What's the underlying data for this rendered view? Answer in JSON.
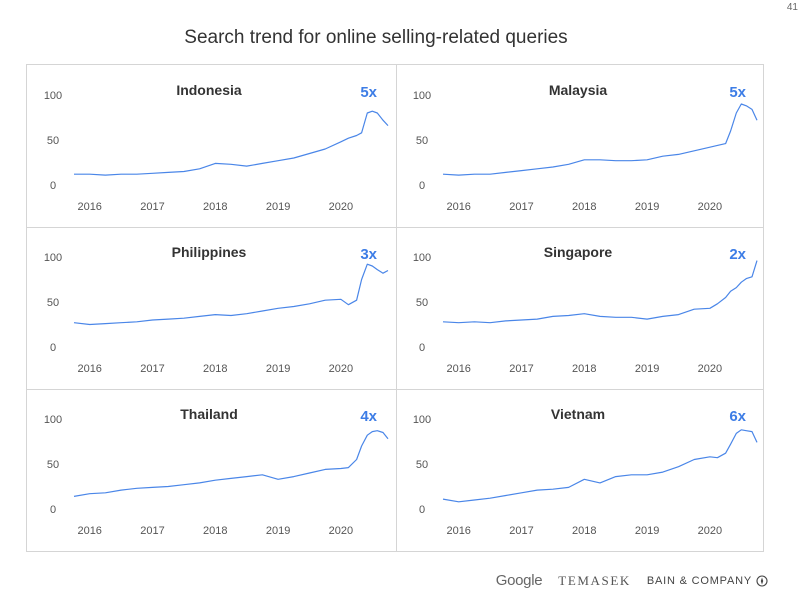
{
  "page_number": "41",
  "title": "Search trend for online selling-related queries",
  "colors": {
    "line": "#4a86e8",
    "multiplier": "#3d7de6",
    "frame": "#d5d5d5"
  },
  "footer": {
    "google": "Google",
    "temasek": "TEMASEK",
    "bain": "BAIN & COMPANY",
    "bain_icon": "bain-compass-icon"
  },
  "chart_data": [
    {
      "type": "line",
      "title": "Indonesia",
      "multiplier": "5x",
      "yticks": [
        "100",
        "50",
        "0"
      ],
      "ylim": [
        0,
        100
      ],
      "xticks": [
        "2016",
        "2017",
        "2018",
        "2019",
        "2020"
      ],
      "xlim": [
        2015.75,
        2020.75
      ],
      "series": [
        {
          "x": [
            2015.75,
            2016.0,
            2016.25,
            2016.5,
            2016.75,
            2017.0,
            2017.25,
            2017.5,
            2017.75,
            2018.0,
            2018.25,
            2018.5,
            2018.75,
            2019.0,
            2019.25,
            2019.5,
            2019.75,
            2020.0,
            2020.12,
            2020.25,
            2020.33,
            2020.42,
            2020.5,
            2020.58,
            2020.67,
            2020.75
          ],
          "y": [
            12,
            12,
            11,
            12,
            12,
            13,
            14,
            15,
            18,
            24,
            23,
            21,
            24,
            27,
            30,
            35,
            40,
            48,
            52,
            55,
            58,
            80,
            82,
            80,
            72,
            66
          ]
        }
      ]
    },
    {
      "type": "line",
      "title": "Malaysia",
      "multiplier": "5x",
      "yticks": [
        "100",
        "50",
        "0"
      ],
      "ylim": [
        0,
        100
      ],
      "xticks": [
        "2016",
        "2017",
        "2018",
        "2019",
        "2020"
      ],
      "xlim": [
        2015.75,
        2020.75
      ],
      "series": [
        {
          "x": [
            2015.75,
            2016.0,
            2016.25,
            2016.5,
            2016.75,
            2017.0,
            2017.25,
            2017.5,
            2017.75,
            2018.0,
            2018.25,
            2018.5,
            2018.75,
            2019.0,
            2019.25,
            2019.5,
            2019.75,
            2020.0,
            2020.12,
            2020.25,
            2020.33,
            2020.42,
            2020.5,
            2020.58,
            2020.67,
            2020.75
          ],
          "y": [
            12,
            11,
            12,
            12,
            14,
            16,
            18,
            20,
            23,
            28,
            28,
            27,
            27,
            28,
            32,
            34,
            38,
            42,
            44,
            46,
            60,
            80,
            90,
            88,
            84,
            72
          ]
        }
      ]
    },
    {
      "type": "line",
      "title": "Philippines",
      "multiplier": "3x",
      "yticks": [
        "100",
        "50",
        "0"
      ],
      "ylim": [
        0,
        100
      ],
      "xticks": [
        "2016",
        "2017",
        "2018",
        "2019",
        "2020"
      ],
      "xlim": [
        2015.75,
        2020.75
      ],
      "series": [
        {
          "x": [
            2015.75,
            2016.0,
            2016.25,
            2016.5,
            2016.75,
            2017.0,
            2017.25,
            2017.5,
            2017.75,
            2018.0,
            2018.25,
            2018.5,
            2018.75,
            2019.0,
            2019.25,
            2019.5,
            2019.75,
            2020.0,
            2020.12,
            2020.25,
            2020.33,
            2020.42,
            2020.5,
            2020.58,
            2020.67,
            2020.75
          ],
          "y": [
            27,
            25,
            26,
            27,
            28,
            30,
            31,
            32,
            34,
            36,
            35,
            37,
            40,
            43,
            45,
            48,
            52,
            53,
            47,
            52,
            75,
            92,
            90,
            86,
            82,
            85
          ]
        }
      ]
    },
    {
      "type": "line",
      "title": "Singapore",
      "multiplier": "2x",
      "yticks": [
        "100",
        "50",
        "0"
      ],
      "ylim": [
        0,
        100
      ],
      "xticks": [
        "2016",
        "2017",
        "2018",
        "2019",
        "2020"
      ],
      "xlim": [
        2015.75,
        2020.75
      ],
      "series": [
        {
          "x": [
            2015.75,
            2016.0,
            2016.25,
            2016.5,
            2016.75,
            2017.0,
            2017.25,
            2017.5,
            2017.75,
            2018.0,
            2018.25,
            2018.5,
            2018.75,
            2019.0,
            2019.25,
            2019.5,
            2019.75,
            2020.0,
            2020.12,
            2020.25,
            2020.33,
            2020.42,
            2020.5,
            2020.58,
            2020.67,
            2020.75
          ],
          "y": [
            28,
            27,
            28,
            27,
            29,
            30,
            31,
            34,
            35,
            37,
            34,
            33,
            33,
            31,
            34,
            36,
            42,
            43,
            48,
            55,
            62,
            66,
            72,
            76,
            78,
            96
          ]
        }
      ]
    },
    {
      "type": "line",
      "title": "Thailand",
      "multiplier": "4x",
      "yticks": [
        "100",
        "50",
        "0"
      ],
      "ylim": [
        0,
        100
      ],
      "xticks": [
        "2016",
        "2017",
        "2018",
        "2019",
        "2020"
      ],
      "xlim": [
        2015.75,
        2020.75
      ],
      "series": [
        {
          "x": [
            2015.75,
            2016.0,
            2016.25,
            2016.5,
            2016.75,
            2017.0,
            2017.25,
            2017.5,
            2017.75,
            2018.0,
            2018.25,
            2018.5,
            2018.75,
            2019.0,
            2019.25,
            2019.5,
            2019.75,
            2020.0,
            2020.12,
            2020.25,
            2020.33,
            2020.42,
            2020.5,
            2020.58,
            2020.67,
            2020.75
          ],
          "y": [
            14,
            17,
            18,
            21,
            23,
            24,
            25,
            27,
            29,
            32,
            34,
            36,
            38,
            33,
            36,
            40,
            44,
            45,
            46,
            55,
            70,
            82,
            86,
            87,
            85,
            78
          ]
        }
      ]
    },
    {
      "type": "line",
      "title": "Vietnam",
      "multiplier": "6x",
      "yticks": [
        "100",
        "50",
        "0"
      ],
      "ylim": [
        0,
        100
      ],
      "xticks": [
        "2016",
        "2017",
        "2018",
        "2019",
        "2020"
      ],
      "xlim": [
        2015.75,
        2020.75
      ],
      "series": [
        {
          "x": [
            2015.75,
            2016.0,
            2016.25,
            2016.5,
            2016.75,
            2017.0,
            2017.25,
            2017.5,
            2017.75,
            2018.0,
            2018.25,
            2018.5,
            2018.75,
            2019.0,
            2019.25,
            2019.5,
            2019.75,
            2020.0,
            2020.12,
            2020.25,
            2020.33,
            2020.42,
            2020.5,
            2020.58,
            2020.67,
            2020.75
          ],
          "y": [
            11,
            8,
            10,
            12,
            15,
            18,
            21,
            22,
            24,
            33,
            29,
            36,
            38,
            38,
            41,
            47,
            55,
            58,
            57,
            62,
            72,
            84,
            88,
            87,
            86,
            74
          ]
        }
      ]
    }
  ]
}
